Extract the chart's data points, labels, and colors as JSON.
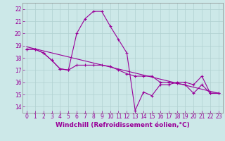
{
  "xlabel": "Windchill (Refroidissement éolien,°C)",
  "background_color": "#cce8e8",
  "line_color": "#990099",
  "xlim": [
    -0.5,
    23.5
  ],
  "ylim": [
    13.5,
    22.5
  ],
  "yticks": [
    14,
    15,
    16,
    17,
    18,
    19,
    20,
    21,
    22
  ],
  "xticks": [
    0,
    1,
    2,
    3,
    4,
    5,
    6,
    7,
    8,
    9,
    10,
    11,
    12,
    13,
    14,
    15,
    16,
    17,
    18,
    19,
    20,
    21,
    22,
    23
  ],
  "series1_x": [
    0,
    1,
    2,
    3,
    4,
    5,
    6,
    7,
    8,
    9,
    10,
    11,
    12,
    13,
    14,
    15,
    16,
    17,
    18,
    19,
    20,
    21,
    22,
    23
  ],
  "series1_y": [
    18.7,
    18.7,
    18.4,
    17.8,
    17.1,
    17.0,
    17.4,
    17.4,
    17.4,
    17.4,
    17.3,
    17.0,
    16.7,
    16.5,
    16.5,
    16.5,
    16.0,
    16.0,
    15.9,
    15.8,
    15.1,
    15.8,
    15.1,
    15.1
  ],
  "series2_x": [
    0,
    1,
    2,
    3,
    4,
    5,
    6,
    7,
    8,
    9,
    10,
    11,
    12,
    13,
    14,
    15,
    16,
    17,
    18,
    19,
    20,
    21,
    22,
    23
  ],
  "series2_y": [
    18.7,
    18.7,
    18.4,
    17.8,
    17.1,
    17.0,
    20.0,
    21.2,
    21.8,
    21.8,
    20.6,
    19.5,
    18.4,
    13.7,
    15.2,
    14.9,
    15.8,
    15.8,
    16.0,
    16.0,
    15.8,
    16.5,
    15.1,
    15.1
  ],
  "series3_x": [
    0,
    23
  ],
  "series3_y": [
    18.9,
    15.1
  ],
  "grid_color": "#b0d0d0",
  "tick_fontsize": 5.5,
  "xlabel_fontsize": 6.5
}
